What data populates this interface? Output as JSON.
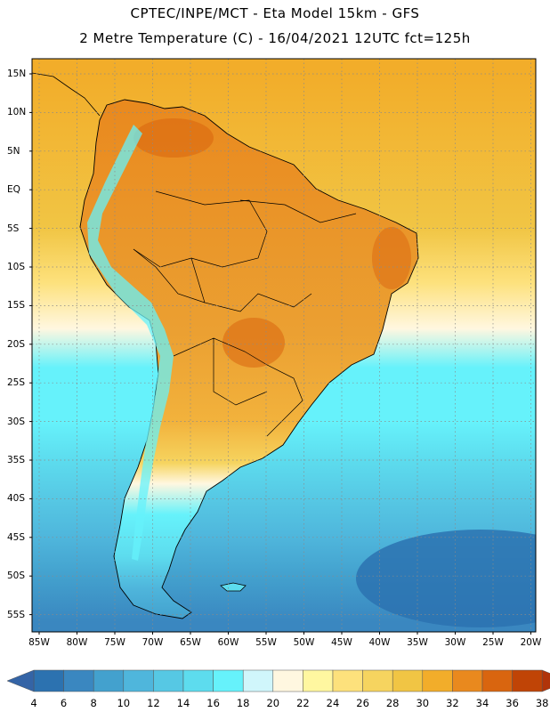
{
  "title": {
    "line1": "CPTEC/INPE/MCT -  Eta Model 15km - GFS",
    "line2": "2 Metre Temperature (C) - 16/04/2021 12UTC fct=125h"
  },
  "map": {
    "lat_labels": [
      "15N",
      "10N",
      "5N",
      "EQ",
      "5S",
      "10S",
      "15S",
      "20S",
      "25S",
      "30S",
      "35S",
      "40S",
      "45S",
      "50S",
      "55S"
    ],
    "lon_labels": [
      "85W",
      "80W",
      "75W",
      "70W",
      "65W",
      "60W",
      "55W",
      "50W",
      "45W",
      "40W",
      "35W",
      "30W",
      "25W",
      "20W"
    ],
    "ocean_bands": [
      {
        "lat": 15,
        "value": 30
      },
      {
        "lat": -5,
        "value": 29
      },
      {
        "lat": -12,
        "value": 25
      },
      {
        "lat": -18,
        "value": 21
      },
      {
        "lat": -23,
        "value": 17
      },
      {
        "lat": -30,
        "value": 17
      },
      {
        "lat": -35,
        "value": 15
      },
      {
        "lat": -40,
        "value": 13
      },
      {
        "lat": -45,
        "value": 11
      },
      {
        "lat": -50,
        "value": 9
      },
      {
        "lat": -56,
        "value": 7
      }
    ]
  },
  "colorbar": {
    "labels": [
      "4",
      "6",
      "8",
      "10",
      "12",
      "14",
      "16",
      "18",
      "20",
      "22",
      "24",
      "26",
      "28",
      "30",
      "32",
      "34",
      "36",
      "38"
    ],
    "colors": [
      "#2c72b0",
      "#3a87c0",
      "#43a1ce",
      "#4fb6dc",
      "#56c8e4",
      "#5ddcee",
      "#66f2fb",
      "#d0f6fb",
      "#fff7e0",
      "#fff7a0",
      "#fde17c",
      "#f6d45f",
      "#f1c544",
      "#f2ad2a",
      "#e9891e",
      "#d9650f",
      "#c04406"
    ],
    "low_color": "#3464a6",
    "high_color": "#b0340a"
  }
}
